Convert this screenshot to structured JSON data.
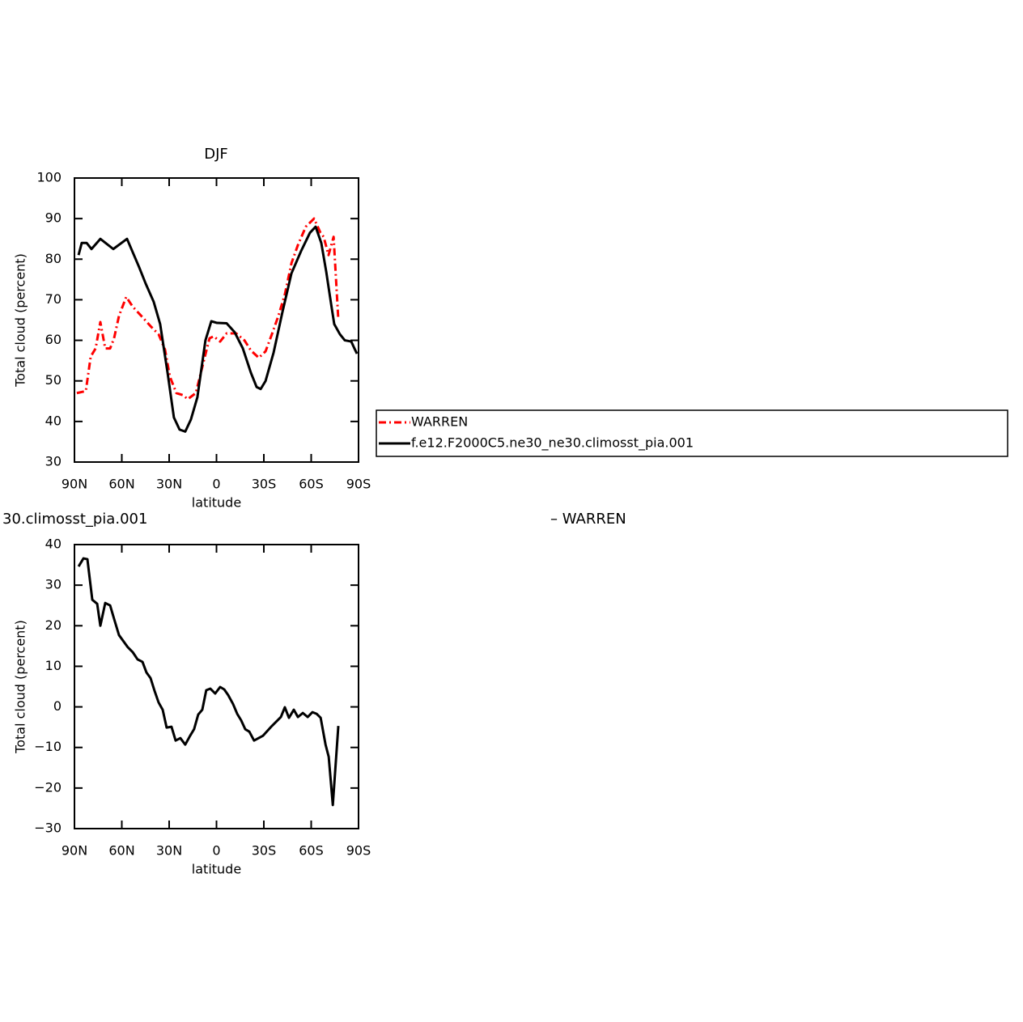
{
  "chart_data": [
    {
      "type": "line",
      "title": "DJF",
      "xlabel": "latitude",
      "ylabel": "Total cloud (percent)",
      "xlim": [
        90,
        -90
      ],
      "xticks": [
        {
          "value": 90,
          "label": "90N"
        },
        {
          "value": 60,
          "label": "60N"
        },
        {
          "value": 30,
          "label": "30N"
        },
        0,
        {
          "value": -30,
          "label": "30S"
        },
        {
          "value": -60,
          "label": "60S"
        },
        {
          "value": -90,
          "label": "90S"
        }
      ],
      "ylim": [
        30,
        100
      ],
      "yticks": [
        30,
        40,
        50,
        60,
        70,
        80,
        90,
        100
      ],
      "series": [
        {
          "name": "WARREN",
          "color": "#ff0000",
          "dashed": true,
          "x": [
            88.5,
            82.8,
            79.7,
            76.6,
            73.6,
            70.5,
            67.4,
            64.9,
            61.8,
            57.2,
            53.1,
            46.9,
            41.8,
            36.7,
            32.6,
            29.5,
            25.4,
            21.3,
            18.2,
            13.1,
            8,
            4.4,
            1.8,
            -2.3,
            -6.4,
            -12.5,
            -17.7,
            -21.8,
            -26.8,
            -31.1,
            -35.1,
            -39.2,
            -43.3,
            -47.5,
            -51.6,
            -56.6,
            -61.8,
            -65.9,
            -67.9,
            -71,
            -74.2,
            -77.2
          ],
          "values": [
            47,
            47.5,
            56,
            58,
            64.5,
            58,
            58,
            60.5,
            66,
            70.7,
            68.3,
            65.7,
            63.5,
            61.5,
            57.7,
            51,
            47,
            46.5,
            45.5,
            47,
            55,
            60.5,
            61,
            59.7,
            61.7,
            61.7,
            60,
            57.5,
            55.7,
            57.3,
            61.5,
            66,
            71.3,
            79,
            83.5,
            88,
            90,
            86.5,
            85.5,
            81,
            85.5,
            65
          ]
        },
        {
          "name": "f.e12.F2000C5.ne30_ne30.climosst_pia.001",
          "color": "#000000",
          "dashed": false,
          "x": [
            87.4,
            85.4,
            82.3,
            79.2,
            73.6,
            65.4,
            56.7,
            49,
            44.9,
            39.8,
            35.7,
            31,
            27,
            23.4,
            19.8,
            16.2,
            12.1,
            7,
            3.3,
            -0.3,
            -6.4,
            -11.5,
            -16.7,
            -21.8,
            -25.4,
            -28,
            -31.1,
            -36.2,
            -41.8,
            -47.5,
            -53.6,
            -59.2,
            -62.8,
            -66.4,
            -69.5,
            -72.6,
            -74.6,
            -78.2,
            -81.3,
            -85.4,
            -87.4,
            -89
          ],
          "values": [
            81,
            84,
            84,
            82.5,
            85,
            82.5,
            85,
            78,
            74,
            69.5,
            64,
            52,
            41,
            38,
            37.5,
            40.5,
            46,
            60,
            64.7,
            64.3,
            64.2,
            62,
            58,
            52,
            48.5,
            48,
            50,
            57,
            67,
            76.5,
            82,
            86.5,
            88,
            84,
            77,
            69,
            64,
            61.5,
            60,
            59.7,
            58,
            56.7
          ]
        }
      ]
    },
    {
      "type": "line",
      "title": "30.climosst_pia.001",
      "title_right": "– WARREN",
      "xlabel": "latitude",
      "ylabel": "Total cloud (percent)",
      "xlim": [
        90,
        -90
      ],
      "xticks": [
        {
          "value": 90,
          "label": "90N"
        },
        {
          "value": 60,
          "label": "60N"
        },
        {
          "value": 30,
          "label": "30N"
        },
        0,
        {
          "value": -30,
          "label": "30S"
        },
        {
          "value": -60,
          "label": "60S"
        },
        {
          "value": -90,
          "label": "90S"
        }
      ],
      "ylim": [
        -30,
        40
      ],
      "yticks": [
        {
          "value": -30,
          "label": "−30"
        },
        {
          "value": -20,
          "label": "−20"
        },
        {
          "value": -10,
          "label": "−10"
        },
        0,
        10,
        20,
        30,
        40
      ],
      "series": [
        {
          "color": "#000000",
          "dashed": false,
          "x": [
            87.4,
            84.3,
            81.8,
            78.7,
            75.6,
            73.6,
            70.5,
            67.4,
            64.9,
            61.8,
            56.2,
            53.1,
            50,
            46.9,
            44.4,
            41.8,
            39.2,
            36.7,
            34.1,
            31.6,
            28.5,
            25.9,
            22.9,
            19.8,
            16.7,
            14.2,
            11.6,
            9,
            6.5,
            3.9,
            0.8,
            -2.3,
            -4.9,
            -7.4,
            -10.5,
            -13.1,
            -15.6,
            -18.2,
            -20.8,
            -23.8,
            -29.5,
            -35.1,
            -40.8,
            -43.3,
            -45.9,
            -49,
            -51.6,
            -54.7,
            -57.8,
            -60.8,
            -63.4,
            -66,
            -69.1,
            -71.1,
            -73.7,
            -77.2
          ],
          "values": [
            34.6,
            36.6,
            36.4,
            26.4,
            25.4,
            20,
            25.6,
            25,
            21.7,
            17.7,
            14.7,
            13.5,
            11.7,
            11.1,
            8.5,
            7.1,
            3.9,
            1.1,
            -0.7,
            -5.1,
            -4.9,
            -8.3,
            -7.7,
            -9.3,
            -7.1,
            -5.5,
            -1.9,
            -0.7,
            4.1,
            4.5,
            3.3,
            4.9,
            4.3,
            2.9,
            0.7,
            -1.7,
            -3.3,
            -5.5,
            -6.1,
            -8.3,
            -7.1,
            -4.7,
            -2.5,
            -0.1,
            -2.7,
            -0.7,
            -2.5,
            -1.5,
            -2.5,
            -1.3,
            -1.7,
            -2.7,
            -9.3,
            -12.3,
            -24.2,
            -4.7
          ]
        }
      ]
    }
  ]
}
